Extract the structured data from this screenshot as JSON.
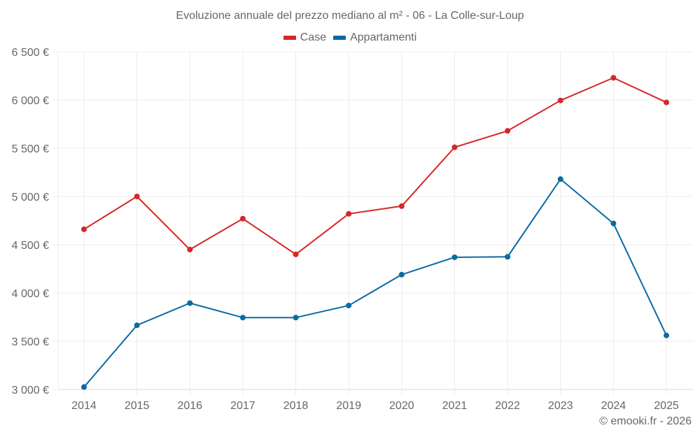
{
  "chart_data": {
    "type": "line",
    "title": "Evoluzione annuale del prezzo mediano al m² - 06 - La Colle-sur-Loup",
    "xlabel": "",
    "ylabel": "",
    "x": [
      "2014",
      "2015",
      "2016",
      "2017",
      "2018",
      "2019",
      "2020",
      "2021",
      "2022",
      "2023",
      "2024",
      "2025"
    ],
    "ylim": [
      3000,
      6500
    ],
    "yticks": [
      3000,
      3500,
      4000,
      4500,
      5000,
      5500,
      6000,
      6500
    ],
    "ytick_labels": [
      "3 000 €",
      "3 500 €",
      "4 000 €",
      "4 500 €",
      "5 000 €",
      "5 500 €",
      "6 000 €",
      "6 500 €"
    ],
    "grid": true,
    "legend_position": "top-center",
    "series": [
      {
        "name": "Case",
        "color": "#d62728",
        "values": [
          4660,
          5000,
          4450,
          4770,
          4400,
          4820,
          4900,
          5510,
          5680,
          5995,
          6230,
          5975
        ]
      },
      {
        "name": "Appartamenti",
        "color": "#0b6aa2",
        "values": [
          3025,
          3665,
          3895,
          3745,
          3745,
          3870,
          4190,
          4370,
          4375,
          5180,
          4720,
          3560
        ]
      }
    ]
  },
  "credit": "© emooki.fr - 2026"
}
